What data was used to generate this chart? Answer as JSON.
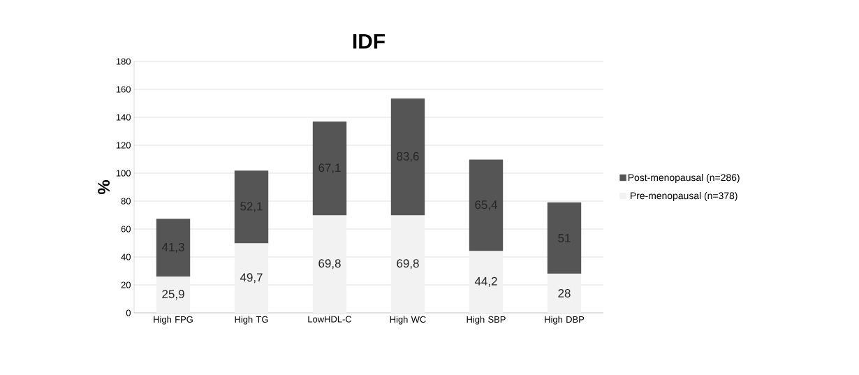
{
  "chart_data": {
    "type": "bar",
    "stacked": true,
    "title": "IDF",
    "ylabel": "%",
    "categories": [
      "High FPG",
      "High TG",
      "LowHDL-C",
      "High  WC",
      "High SBP",
      "High DBP"
    ],
    "series": [
      {
        "name": "Pre-menopausal (n=378)",
        "color": "#f2f2f2",
        "values": [
          25.9,
          49.7,
          69.8,
          69.8,
          44.2,
          28
        ],
        "value_labels": [
          "25,9",
          "49,7",
          "69,8",
          "69,8",
          "44,2",
          "28"
        ]
      },
      {
        "name": "Post-menopausal (n=286)",
        "color": "#555555",
        "values": [
          41.3,
          52.1,
          67.1,
          83.6,
          65.4,
          51
        ],
        "value_labels": [
          "41,3",
          "52,1",
          "67,1",
          "83,6",
          "65,4",
          "51"
        ]
      }
    ],
    "ylim": [
      0,
      180
    ],
    "yticks": [
      0,
      20,
      40,
      60,
      80,
      100,
      120,
      140,
      160,
      180
    ],
    "grid": "y",
    "legend": "right"
  }
}
